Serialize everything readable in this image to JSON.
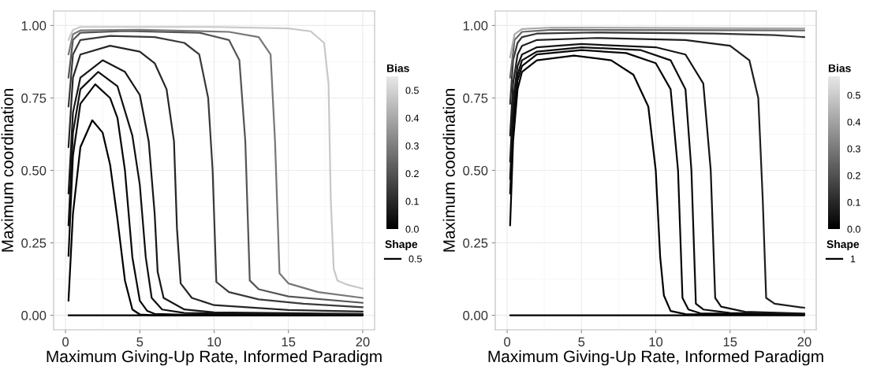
{
  "chart_data": [
    {
      "type": "line",
      "xlabel": "Maximum Giving-Up Rate, Informed Paradigm",
      "ylabel": "Maximum coordination",
      "xlim": [
        -0.8,
        20.8
      ],
      "ylim": [
        -0.05,
        1.05
      ],
      "xticks": [
        0,
        5,
        10,
        15,
        20
      ],
      "yticks": [
        {
          "value": 0,
          "label": "0.00"
        },
        {
          "value": 0.25,
          "label": "0.25"
        },
        {
          "value": 0.5,
          "label": "0.50"
        },
        {
          "value": 0.75,
          "label": "0.75"
        },
        {
          "value": 1,
          "label": "1.00"
        }
      ],
      "grid": true,
      "legend": "right",
      "legend_title": "Shape",
      "clabel": "Bias",
      "clim": [
        0,
        0.55
      ],
      "cticks": [
        {
          "value": 0,
          "label": "0.0"
        },
        0.1,
        0.2,
        0.3,
        0.4,
        0.5
      ],
      "marker": "none",
      "line_style": "solid",
      "series": [
        {
          "name": "0.5",
          "color": "#000000",
          "x": [
            0.2,
            20
          ],
          "values": [
            0,
            0
          ]
        },
        {
          "color": "#000000",
          "x": [
            0.2,
            0.5,
            1,
            1.8,
            2.5,
            3,
            3.5,
            4,
            4.5,
            5,
            6,
            20
          ],
          "values": [
            0.05,
            0.35,
            0.58,
            0.673,
            0.63,
            0.52,
            0.33,
            0.12,
            0.02,
            0.003,
            0,
            0
          ]
        },
        {
          "color": "#080808",
          "x": [
            0.2,
            0.5,
            1,
            2,
            3,
            3.5,
            4,
            4.5,
            5,
            5.5,
            6,
            8,
            20
          ],
          "values": [
            0.205,
            0.55,
            0.73,
            0.797,
            0.75,
            0.68,
            0.5,
            0.2,
            0.05,
            0.015,
            0.005,
            0.002,
            0.001
          ]
        },
        {
          "color": "#101010",
          "x": [
            0.2,
            0.5,
            1,
            2.2,
            3.5,
            4.5,
            5,
            5.4,
            5.8,
            6.5,
            8,
            20
          ],
          "values": [
            0.31,
            0.63,
            0.78,
            0.84,
            0.79,
            0.62,
            0.45,
            0.2,
            0.06,
            0.02,
            0.008,
            0.003
          ]
        },
        {
          "color": "#181818",
          "x": [
            0.2,
            0.5,
            1,
            2.5,
            4,
            5,
            5.6,
            6,
            6.2,
            6.6,
            8,
            10,
            20
          ],
          "values": [
            0.42,
            0.7,
            0.82,
            0.88,
            0.84,
            0.76,
            0.6,
            0.35,
            0.15,
            0.06,
            0.02,
            0.01,
            0.005
          ]
        },
        {
          "color": "#262626",
          "x": [
            0.2,
            0.5,
            1,
            3,
            5,
            6,
            6.8,
            7.3,
            7.5,
            7.75,
            8.5,
            10,
            15,
            20
          ],
          "values": [
            0.58,
            0.82,
            0.9,
            0.93,
            0.91,
            0.87,
            0.78,
            0.6,
            0.3,
            0.11,
            0.06,
            0.035,
            0.018,
            0.013
          ]
        },
        {
          "color": "#3a3a3a",
          "x": [
            0.2,
            0.5,
            1,
            3,
            6,
            8,
            9,
            9.6,
            9.9,
            10.15,
            11,
            13,
            16,
            20
          ],
          "values": [
            0.72,
            0.9,
            0.95,
            0.964,
            0.96,
            0.94,
            0.9,
            0.75,
            0.5,
            0.115,
            0.08,
            0.055,
            0.04,
            0.028
          ]
        },
        {
          "color": "#555555",
          "x": [
            0.2,
            0.5,
            1,
            4,
            9,
            11,
            11.7,
            12.1,
            12.4,
            13,
            15,
            20
          ],
          "values": [
            0.82,
            0.95,
            0.975,
            0.981,
            0.975,
            0.95,
            0.88,
            0.6,
            0.12,
            0.09,
            0.065,
            0.043
          ]
        },
        {
          "color": "#777777",
          "x": [
            0.2,
            0.5,
            1,
            5,
            11,
            13,
            13.8,
            14.1,
            14.4,
            15,
            17,
            20
          ],
          "values": [
            0.9,
            0.97,
            0.983,
            0.985,
            0.978,
            0.96,
            0.9,
            0.6,
            0.145,
            0.11,
            0.08,
            0.06
          ]
        },
        {
          "color": "#c8c8c8",
          "x": [
            0.2,
            0.5,
            1,
            10,
            15,
            16.5,
            17.4,
            17.7,
            17.85,
            18.05,
            18.3,
            19,
            20
          ],
          "values": [
            0.95,
            0.985,
            0.995,
            0.995,
            0.99,
            0.98,
            0.94,
            0.8,
            0.4,
            0.16,
            0.12,
            0.105,
            0.092
          ]
        }
      ]
    },
    {
      "type": "line",
      "xlabel": "Maximum Giving-Up Rate, Informed Paradigm",
      "ylabel": "Maximum coordination",
      "xlim": [
        -0.8,
        20.8
      ],
      "ylim": [
        -0.05,
        1.05
      ],
      "xticks": [
        0,
        5,
        10,
        15,
        20
      ],
      "yticks": [
        {
          "value": 0,
          "label": "0.00"
        },
        {
          "value": 0.25,
          "label": "0.25"
        },
        {
          "value": 0.5,
          "label": "0.50"
        },
        {
          "value": 0.75,
          "label": "0.75"
        },
        {
          "value": 1,
          "label": "1.00"
        }
      ],
      "grid": true,
      "legend": "right",
      "legend_title": "Shape",
      "clabel": "Bias",
      "clim": [
        0,
        0.57
      ],
      "cticks": [
        {
          "value": 0,
          "label": "0.0"
        },
        0.1,
        0.2,
        0.3,
        0.4,
        0.5
      ],
      "marker": "none",
      "line_style": "solid",
      "series": [
        {
          "name": "1",
          "color": "#000000",
          "x": [
            0.2,
            20
          ],
          "values": [
            0,
            0
          ]
        },
        {
          "color": "#000000",
          "x": [
            0.2,
            0.4,
            0.7,
            1,
            2,
            4.5,
            7,
            8.5,
            9.5,
            10,
            10.3,
            10.55,
            11,
            12,
            20
          ],
          "values": [
            0.31,
            0.6,
            0.78,
            0.84,
            0.88,
            0.896,
            0.88,
            0.83,
            0.72,
            0.5,
            0.2,
            0.068,
            0.015,
            0.004,
            0.001
          ]
        },
        {
          "color": "#060606",
          "x": [
            0.2,
            0.4,
            0.7,
            1,
            2,
            5,
            8,
            10,
            11,
            11.5,
            11.8,
            12.2,
            13,
            20
          ],
          "values": [
            0.42,
            0.66,
            0.81,
            0.86,
            0.9,
            0.915,
            0.905,
            0.87,
            0.78,
            0.5,
            0.06,
            0.02,
            0.007,
            0.002
          ]
        },
        {
          "color": "#0c0c0c",
          "x": [
            0.2,
            0.4,
            0.7,
            1,
            2,
            5,
            9,
            11,
            12,
            12.4,
            12.7,
            13.2,
            15,
            20
          ],
          "values": [
            0.47,
            0.7,
            0.83,
            0.88,
            0.91,
            0.925,
            0.915,
            0.88,
            0.78,
            0.5,
            0.04,
            0.02,
            0.008,
            0.003
          ]
        },
        {
          "color": "#141414",
          "x": [
            0.2,
            0.4,
            0.7,
            1,
            2,
            5,
            10,
            12,
            13.2,
            13.7,
            14.0,
            14.4,
            16,
            20
          ],
          "values": [
            0.53,
            0.74,
            0.86,
            0.9,
            0.925,
            0.936,
            0.925,
            0.9,
            0.8,
            0.5,
            0.06,
            0.03,
            0.012,
            0.006
          ]
        },
        {
          "color": "#1e1e1e",
          "x": [
            0.2,
            0.4,
            0.7,
            1,
            2,
            6,
            12,
            15,
            16.3,
            16.9,
            17.2,
            17.43,
            18,
            20
          ],
          "values": [
            0.62,
            0.8,
            0.9,
            0.93,
            0.95,
            0.957,
            0.95,
            0.93,
            0.88,
            0.75,
            0.4,
            0.06,
            0.04,
            0.026
          ]
        },
        {
          "color": "#333333",
          "x": [
            0.2,
            0.4,
            0.7,
            1,
            2,
            6,
            14,
            18,
            20
          ],
          "values": [
            0.73,
            0.88,
            0.94,
            0.96,
            0.972,
            0.976,
            0.972,
            0.967,
            0.96
          ]
        },
        {
          "color": "#666666",
          "x": [
            0.2,
            0.5,
            1,
            3,
            20
          ],
          "values": [
            0.82,
            0.95,
            0.978,
            0.985,
            0.983
          ]
        },
        {
          "color": "#aaaaaa",
          "x": [
            0.2,
            0.5,
            1,
            3,
            20
          ],
          "values": [
            0.89,
            0.97,
            0.988,
            0.993,
            0.99
          ]
        }
      ]
    }
  ]
}
